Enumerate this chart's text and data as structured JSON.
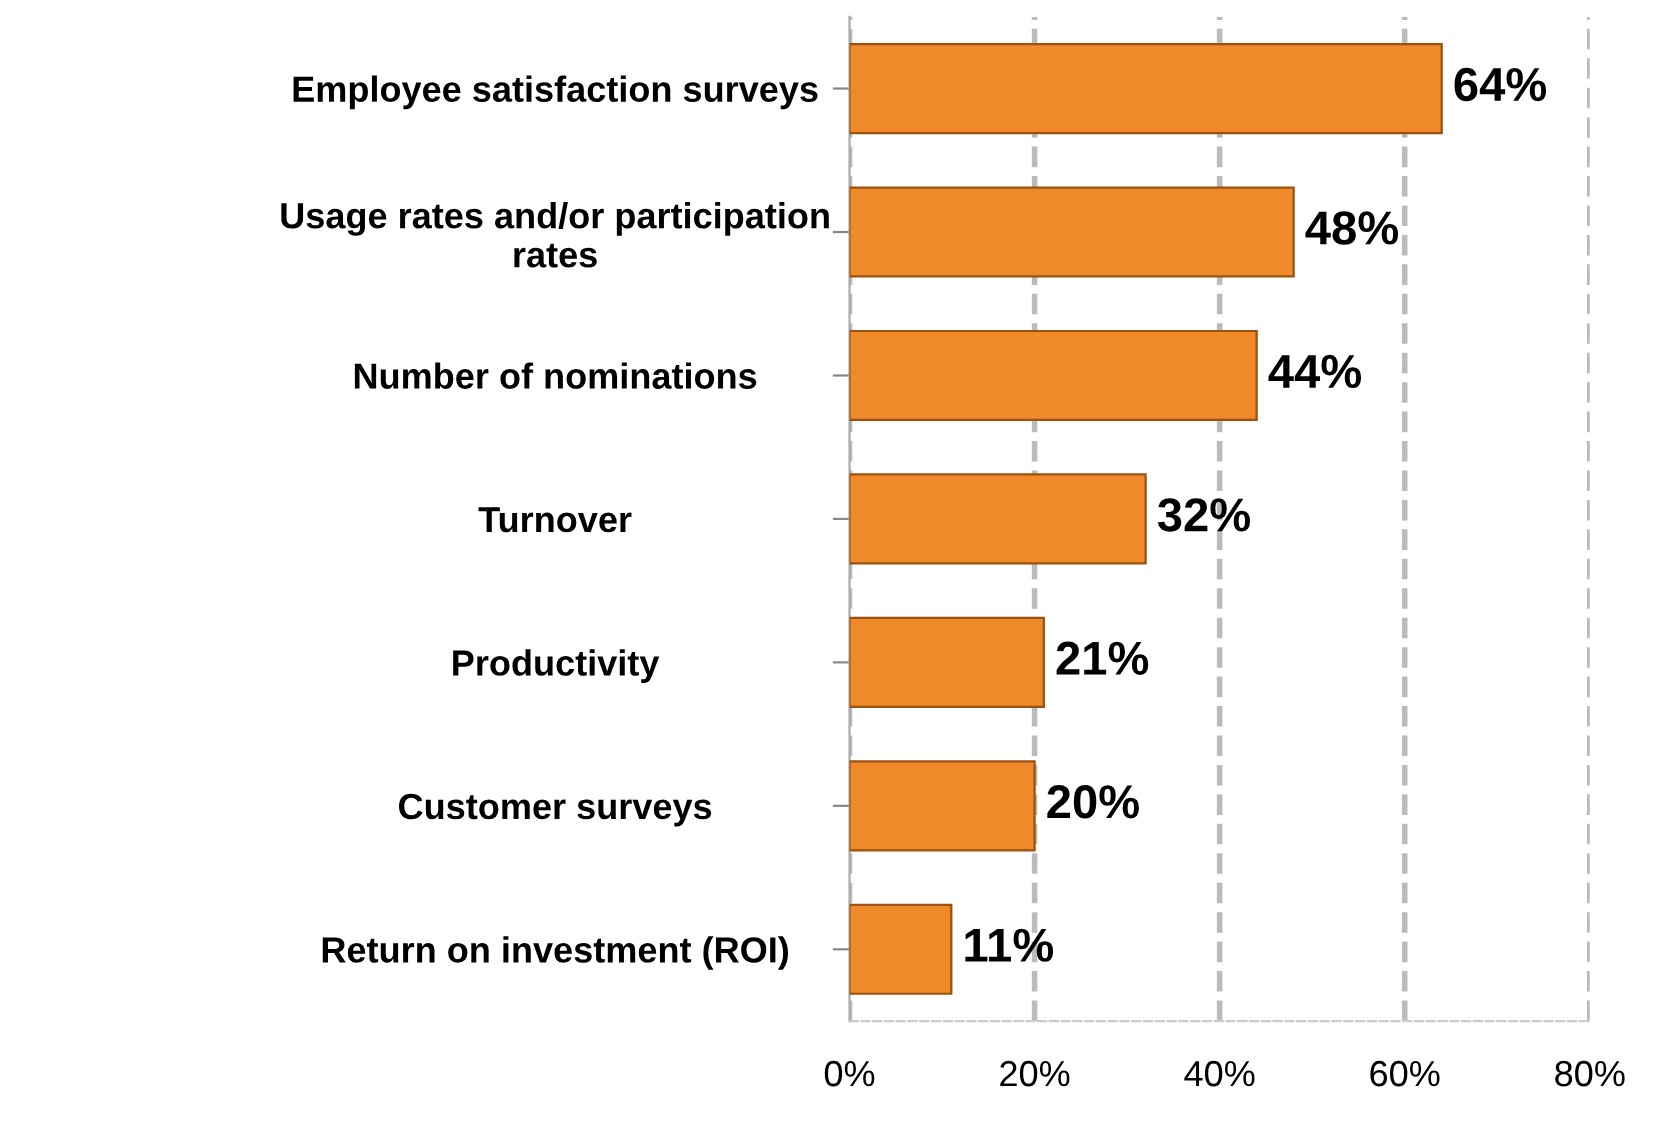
{
  "chart_data": {
    "type": "bar",
    "orientation": "horizontal",
    "categories": [
      "Employee satisfaction surveys",
      "Usage rates and/or participation\nrates",
      "Number of nominations",
      "Turnover",
      "Productivity",
      "Customer surveys",
      "Return on investment (ROI)"
    ],
    "values": [
      64,
      48,
      44,
      32,
      21,
      20,
      11
    ],
    "value_labels": [
      "64%",
      "48%",
      "44%",
      "32%",
      "21%",
      "20%",
      "11%"
    ],
    "color": "#f0892a",
    "xlim": [
      0,
      80
    ],
    "xticks": [
      {
        "value": 0,
        "label": "0%"
      },
      {
        "value": 20,
        "label": "20%"
      },
      {
        "value": 40,
        "label": "40%"
      },
      {
        "value": 60,
        "label": "60%"
      },
      {
        "value": 80,
        "label": "80%"
      }
    ],
    "grid": "x"
  }
}
